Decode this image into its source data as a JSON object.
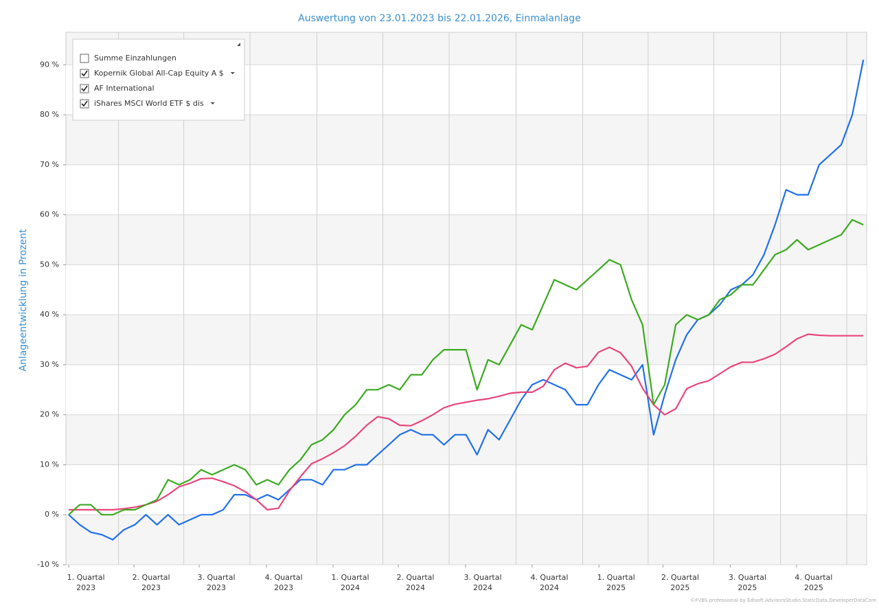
{
  "chart_data": {
    "type": "line",
    "title": "Auswertung von 23.01.2023 bis 22.01.2026, Einmalanlage",
    "y_label": "Anlageentwicklung  in Prozent",
    "footer": "©FVBS professional by Edisoft.AdvisorsStudio.StaticData.DeveloperDataCore",
    "xlim": [
      -0.25,
      72.3
    ],
    "ylim": [
      -10,
      96.5
    ],
    "yticks": [
      {
        "value": -10,
        "label": "-10 %"
      },
      {
        "value": 0,
        "label": "0 %"
      },
      {
        "value": 10,
        "label": "10 %"
      },
      {
        "value": 20,
        "label": "20 %"
      },
      {
        "value": 30,
        "label": "30 %"
      },
      {
        "value": 40,
        "label": "40 %"
      },
      {
        "value": 50,
        "label": "50 %"
      },
      {
        "value": 60,
        "label": "60 %"
      },
      {
        "value": 70,
        "label": "70 %"
      },
      {
        "value": 80,
        "label": "80 %"
      },
      {
        "value": 90,
        "label": "90 %"
      }
    ],
    "xticks": [
      {
        "value": 1.56,
        "label": "1. Quartal",
        "sublabel": "2023"
      },
      {
        "value": 7.47,
        "label": "2. Quartal",
        "sublabel": "2023"
      },
      {
        "value": 13.38,
        "label": "3. Quartal",
        "sublabel": "2023"
      },
      {
        "value": 19.48,
        "label": "4. Quartal",
        "sublabel": "2023"
      },
      {
        "value": 25.51,
        "label": "1. Quartal",
        "sublabel": "2024"
      },
      {
        "value": 31.42,
        "label": "2. Quartal",
        "sublabel": "2024"
      },
      {
        "value": 37.52,
        "label": "3. Quartal",
        "sublabel": "2024"
      },
      {
        "value": 43.55,
        "label": "4. Quartal",
        "sublabel": "2024"
      },
      {
        "value": 49.6,
        "label": "1. Quartal",
        "sublabel": "2025"
      },
      {
        "value": 55.4,
        "label": "2. Quartal",
        "sublabel": "2025"
      },
      {
        "value": 61.5,
        "label": "3. Quartal",
        "sublabel": "2025"
      },
      {
        "value": 67.5,
        "label": "4. Quartal",
        "sublabel": "2025"
      }
    ],
    "grid": true,
    "legend": "upper left",
    "series": [
      {
        "name": "Summe Einzahlungen",
        "color": "#f39a1b",
        "checked": false,
        "dropdown": false
      },
      {
        "name": "Kopernik Global All-Cap Equity A $",
        "color": "#1f6fea",
        "checked": true,
        "dropdown": true,
        "values": [
          0,
          -2,
          -3.5,
          -4,
          -5,
          -3,
          -2,
          0,
          -2,
          0,
          -2,
          -1,
          0,
          0,
          1,
          4,
          4,
          3,
          4,
          3,
          5,
          7,
          7,
          6,
          9,
          9,
          10,
          10,
          12,
          14,
          16,
          17,
          16,
          16,
          14,
          16,
          16,
          12,
          17,
          15,
          19,
          23,
          26,
          27,
          26,
          25,
          22,
          22,
          26,
          29,
          28,
          27,
          30,
          16,
          24,
          31,
          36,
          39,
          40,
          42,
          45,
          46,
          48,
          52,
          58,
          65,
          64,
          64,
          70,
          72,
          74,
          80,
          91
        ]
      },
      {
        "name": "AF International",
        "color": "#e8457c",
        "checked": true,
        "dropdown": false,
        "values": [
          1,
          1,
          1,
          1,
          1,
          1.2,
          1.5,
          2,
          2.7,
          4,
          5.6,
          6.3,
          7.2,
          7.3,
          6.6,
          5.8,
          4.6,
          3,
          1,
          1.3,
          4.8,
          7.6,
          10.2,
          11.2,
          12.4,
          13.8,
          15.7,
          17.9,
          19.6,
          19.2,
          17.9,
          17.8,
          18.8,
          20,
          21.4,
          22.1,
          22.5,
          22.9,
          23.2,
          23.7,
          24.3,
          24.5,
          24.5,
          25.7,
          29,
          30.3,
          29.4,
          29.7,
          32.5,
          33.5,
          32.4,
          29.7,
          25.3,
          22,
          20,
          21.2,
          25.2,
          26.2,
          26.8,
          28.2,
          29.6,
          30.5,
          30.5,
          31.2,
          32.1,
          33.6,
          35.2,
          36.1,
          35.9,
          35.8,
          35.8,
          35.8,
          35.8
        ]
      },
      {
        "name": "iShares MSCI World ETF $ dis",
        "color": "#3aaa1e",
        "checked": true,
        "dropdown": true,
        "values": [
          0,
          2,
          2,
          0,
          0,
          1,
          1,
          2,
          3,
          7,
          6,
          7,
          9,
          8,
          9,
          10,
          9,
          6,
          7,
          6,
          9,
          11,
          14,
          15,
          17,
          20,
          22,
          25,
          25,
          26,
          25,
          28,
          28,
          31,
          33,
          33,
          33,
          25,
          31,
          30,
          34,
          38,
          37,
          42,
          47,
          46,
          45,
          47,
          49,
          51,
          50,
          43,
          38,
          22,
          26,
          38,
          40,
          39,
          40,
          43,
          44,
          46,
          46,
          49,
          52,
          53,
          55,
          53,
          54,
          55,
          56,
          59,
          58
        ]
      }
    ]
  }
}
